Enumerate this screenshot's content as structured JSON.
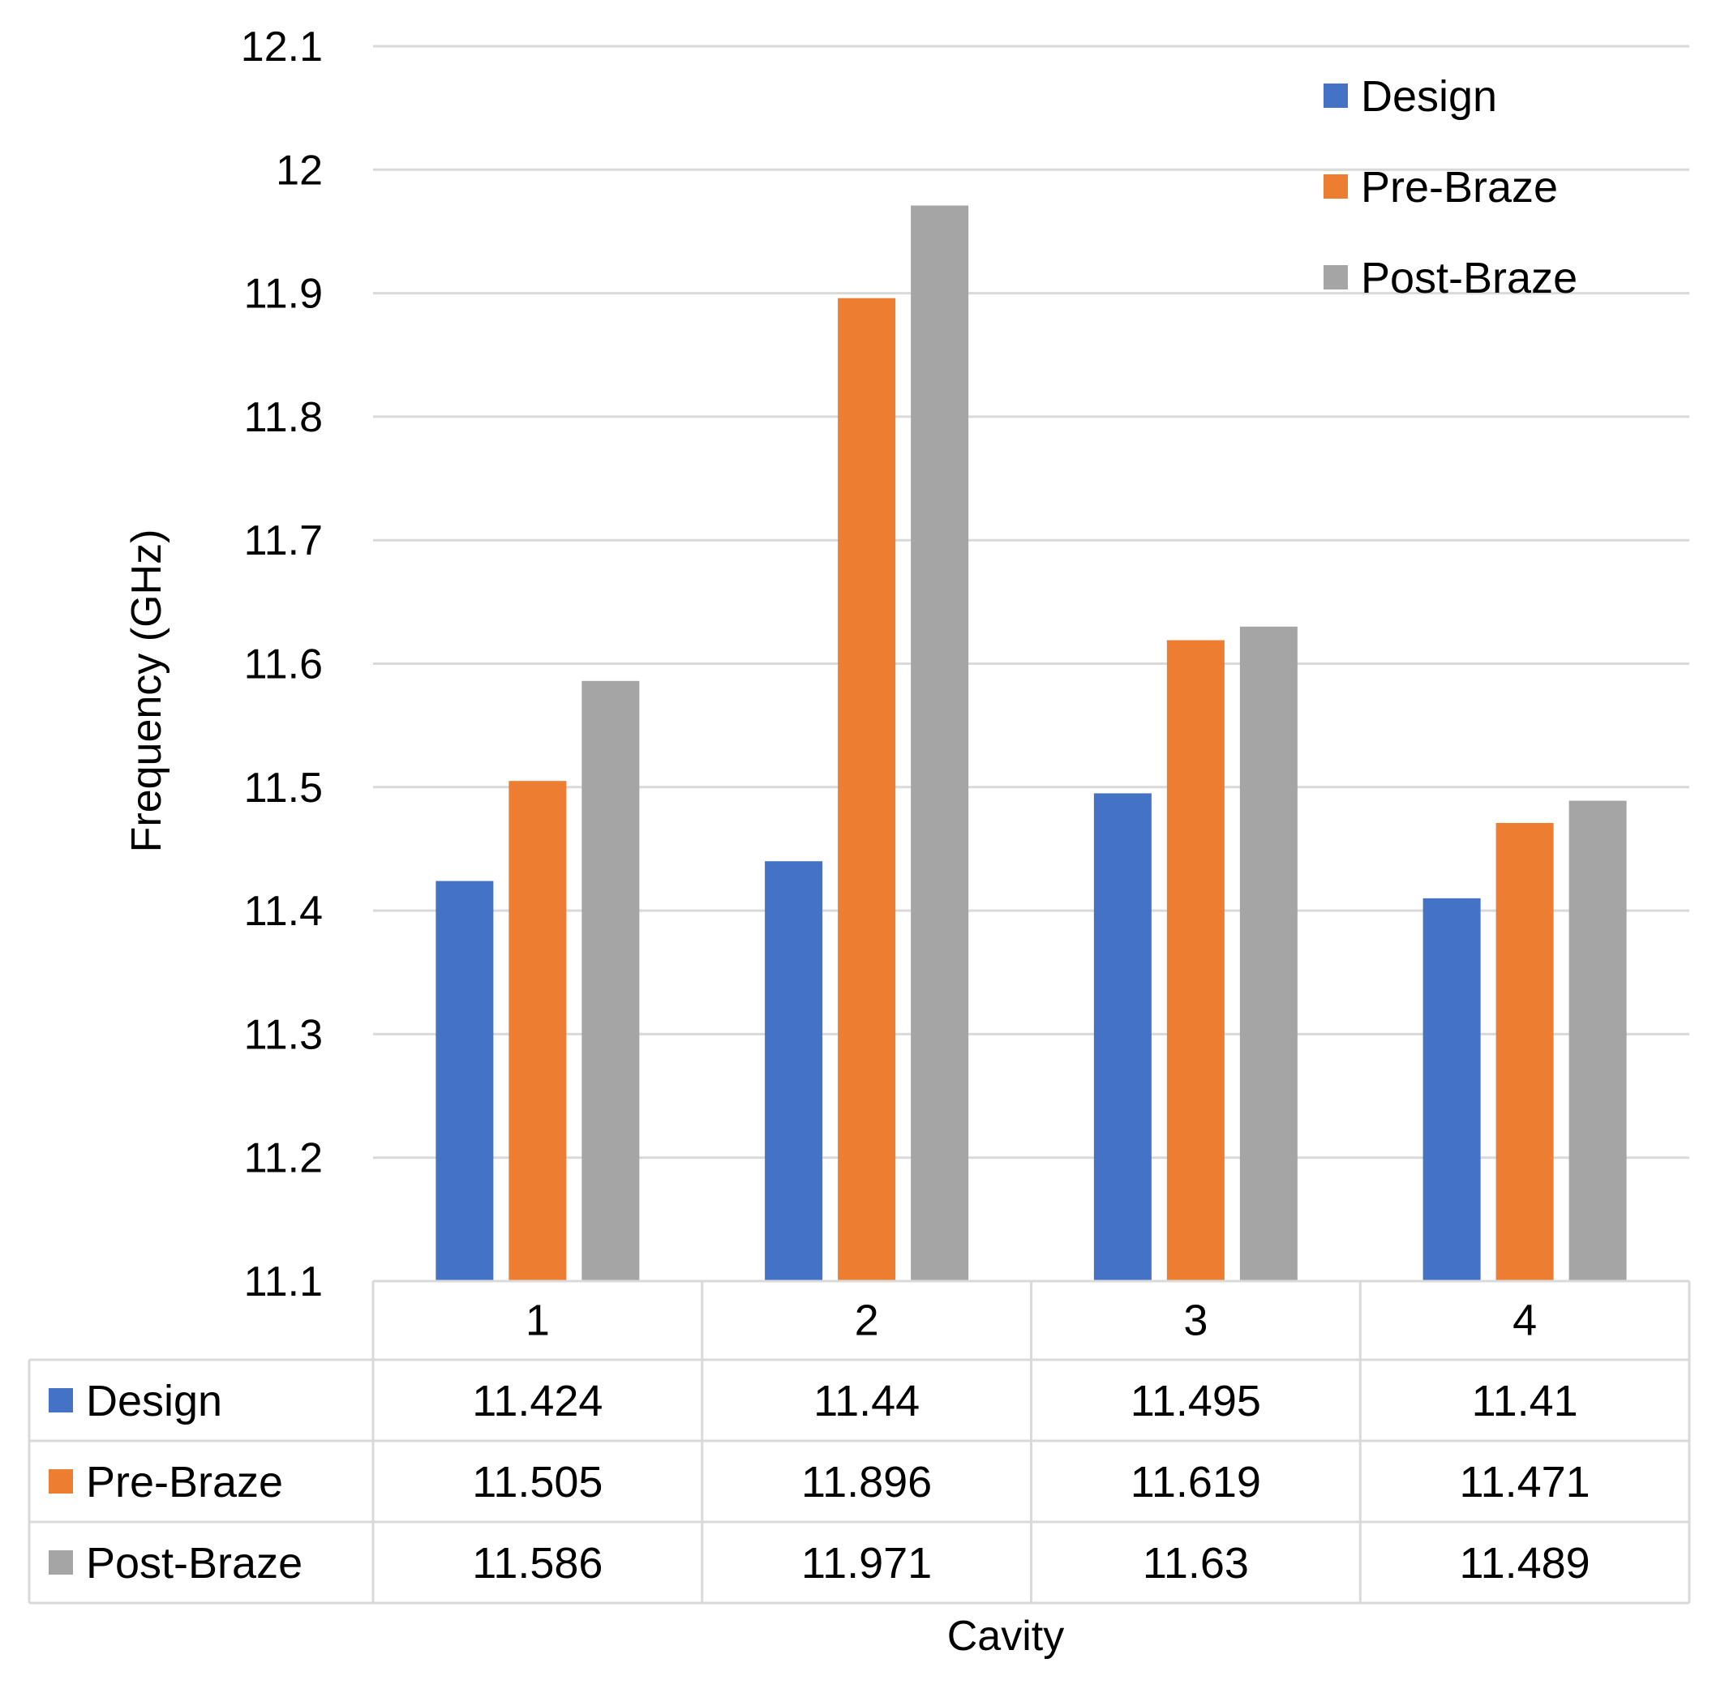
{
  "chart_data": {
    "type": "bar",
    "title": "",
    "xlabel": "Cavity",
    "ylabel": "Frequency (GHz)",
    "categories": [
      "1",
      "2",
      "3",
      "4"
    ],
    "ylim": [
      11.1,
      12.1
    ],
    "yticks": [
      "11.1",
      "11.2",
      "11.3",
      "11.4",
      "11.5",
      "11.6",
      "11.7",
      "11.8",
      "11.9",
      "12",
      "12.1"
    ],
    "grid": true,
    "legend_position": "top-right",
    "data_table": true,
    "series": [
      {
        "name": "Design",
        "color": "#4472C4",
        "values": [
          11.424,
          11.44,
          11.495,
          11.41
        ],
        "labels": [
          "11.424",
          "11.44",
          "11.495",
          "11.41"
        ]
      },
      {
        "name": "Pre-Braze",
        "color": "#ED7D31",
        "values": [
          11.505,
          11.896,
          11.619,
          11.471
        ],
        "labels": [
          "11.505",
          "11.896",
          "11.619",
          "11.471"
        ]
      },
      {
        "name": "Post-Braze",
        "color": "#A5A5A5",
        "values": [
          11.586,
          11.971,
          11.63,
          11.489
        ],
        "labels": [
          "11.586",
          "11.971",
          "11.63",
          "11.489"
        ]
      }
    ]
  }
}
